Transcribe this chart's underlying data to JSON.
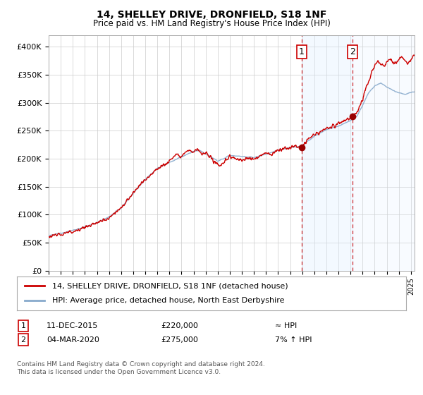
{
  "title": "14, SHELLEY DRIVE, DRONFIELD, S18 1NF",
  "subtitle": "Price paid vs. HM Land Registry's House Price Index (HPI)",
  "ylabel_ticks": [
    "£0",
    "£50K",
    "£100K",
    "£150K",
    "£200K",
    "£250K",
    "£300K",
    "£350K",
    "£400K"
  ],
  "ytick_values": [
    0,
    50000,
    100000,
    150000,
    200000,
    250000,
    300000,
    350000,
    400000
  ],
  "ylim": [
    0,
    420000
  ],
  "xlim_start": 1995.0,
  "xlim_end": 2025.3,
  "transaction1": {
    "date_num": 2015.95,
    "price": 220000,
    "label": "1"
  },
  "transaction2": {
    "date_num": 2020.17,
    "price": 275000,
    "label": "2"
  },
  "legend_line1": "14, SHELLEY DRIVE, DRONFIELD, S18 1NF (detached house)",
  "legend_line2": "HPI: Average price, detached house, North East Derbyshire",
  "ann1_num": "1",
  "ann1_date": "11-DEC-2015",
  "ann1_price": "£220,000",
  "ann1_rel": "≈ HPI",
  "ann2_num": "2",
  "ann2_date": "04-MAR-2020",
  "ann2_price": "£275,000",
  "ann2_rel": "7% ↑ HPI",
  "footer": "Contains HM Land Registry data © Crown copyright and database right 2024.\nThis data is licensed under the Open Government Licence v3.0.",
  "line_color_red": "#cc0000",
  "line_color_blue": "#88aacc",
  "shade_color": "#ddeeff",
  "bg_color": "#ffffff",
  "grid_color": "#cccccc"
}
